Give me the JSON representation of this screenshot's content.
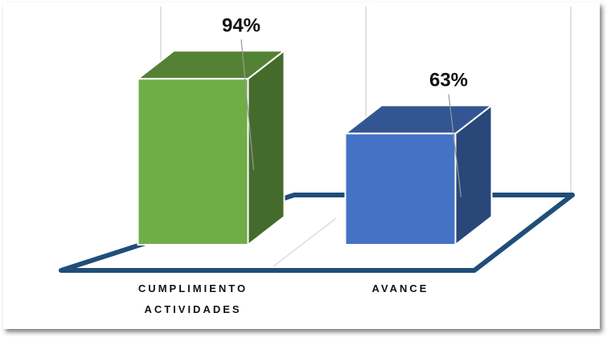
{
  "chart_data": {
    "type": "bar3d",
    "categories": [
      "CUMPLIMIENTO ACTIVIDADES",
      "AVANCE"
    ],
    "values": [
      94,
      63
    ],
    "value_labels": [
      "94%",
      "63%"
    ],
    "colors": [
      "#70ad47",
      "#4472c4"
    ],
    "ylim": [
      0,
      100
    ],
    "grid": true
  }
}
